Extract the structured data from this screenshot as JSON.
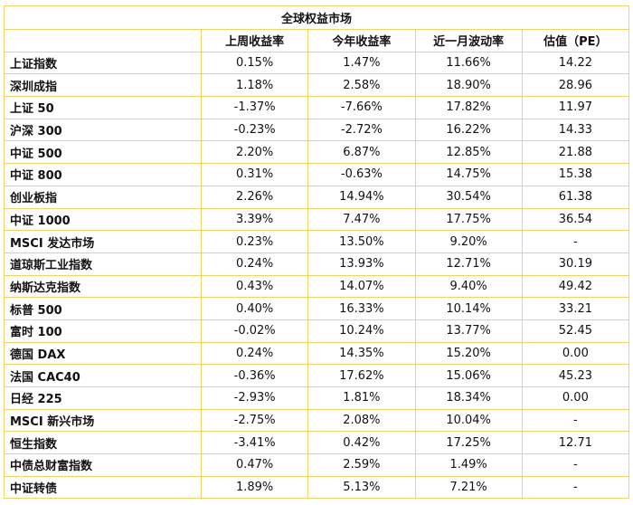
{
  "table": {
    "title": "全球权益市场",
    "columns": [
      "上周收益率",
      "今年收益率",
      "近一月波动率",
      "估值（PE）"
    ],
    "rows": [
      [
        "上证指数",
        "0.15%",
        "1.47%",
        "11.66%",
        "14.22"
      ],
      [
        "深圳成指",
        "1.18%",
        "2.58%",
        "18.90%",
        "28.96"
      ],
      [
        "上证 50",
        "-1.37%",
        "-7.66%",
        "17.82%",
        "11.97"
      ],
      [
        "沪深 300",
        "-0.23%",
        "-2.72%",
        "16.22%",
        "14.33"
      ],
      [
        "中证 500",
        "2.20%",
        "6.87%",
        "12.85%",
        "21.88"
      ],
      [
        "中证 800",
        "0.31%",
        "-0.63%",
        "14.75%",
        "15.38"
      ],
      [
        "创业板指",
        "2.26%",
        "14.94%",
        "30.54%",
        "61.38"
      ],
      [
        "中证 1000",
        "3.39%",
        "7.47%",
        "17.75%",
        "36.54"
      ],
      [
        "MSCI 发达市场",
        "0.23%",
        "13.50%",
        "9.20%",
        "-"
      ],
      [
        "道琼斯工业指数",
        "0.24%",
        "13.93%",
        "12.71%",
        "30.19"
      ],
      [
        "纳斯达克指数",
        "0.43%",
        "14.07%",
        "9.40%",
        "49.42"
      ],
      [
        "标普 500",
        "0.40%",
        "16.33%",
        "10.14%",
        "33.21"
      ],
      [
        "富时 100",
        "-0.02%",
        "10.24%",
        "13.77%",
        "52.45"
      ],
      [
        "德国 DAX",
        "0.24%",
        "14.35%",
        "15.20%",
        "0.00"
      ],
      [
        "法国 CAC40",
        "-0.36%",
        "17.62%",
        "15.06%",
        "45.23"
      ],
      [
        "日经 225",
        "-2.93%",
        "1.81%",
        "18.34%",
        "0.00"
      ],
      [
        "MSCI 新兴市场",
        "-2.75%",
        "2.08%",
        "10.04%",
        "-"
      ],
      [
        "恒生指数",
        "-3.41%",
        "0.42%",
        "17.25%",
        "12.71"
      ],
      [
        "中债总财富指数",
        "0.47%",
        "2.59%",
        "1.49%",
        "-"
      ],
      [
        "中证转债",
        "1.89%",
        "5.13%",
        "7.21%",
        "-"
      ]
    ]
  }
}
